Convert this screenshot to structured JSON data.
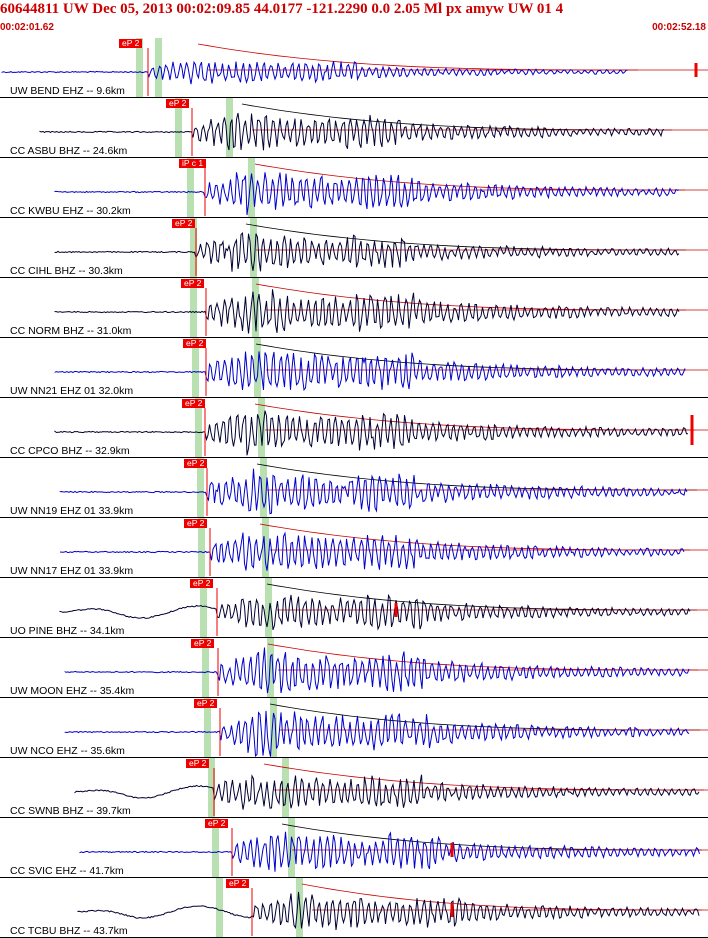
{
  "header": {
    "title": "60644811 UW Dec 05, 2013 00:02:09.85   44.0177 -121.2290  0.0 2.05 Ml px amyw UW 01    4",
    "start_time": "00:02:01.62",
    "end_time": "00:02:52.18"
  },
  "colors": {
    "header_text": "#cc0000",
    "trace_blue": "#0000cc",
    "trace_black": "#000033",
    "coda_line": "#cc0000",
    "pick_marker": "#ee0000",
    "window_band": "#b8e0b0"
  },
  "traces": [
    {
      "label": "UW BEND EHZ -- 9.6km",
      "pick": "eP 2",
      "color": "blue"
    },
    {
      "label": "CC ASBU BHZ -- 24.6km",
      "pick": "eP 2",
      "color": "black"
    },
    {
      "label": "CC KWBU EHZ -- 30.2km",
      "pick": "iP c 1",
      "color": "blue"
    },
    {
      "label": "CC CIHL BHZ -- 30.3km",
      "pick": "eP 2",
      "color": "black"
    },
    {
      "label": "CC NORM BHZ -- 31.0km",
      "pick": "eP 2",
      "color": "black"
    },
    {
      "label": "UW NN21 EHZ 01 32.0km",
      "pick": "eP 2",
      "color": "blue"
    },
    {
      "label": "CC CPCO BHZ -- 32.9km",
      "pick": "eP 2",
      "color": "black"
    },
    {
      "label": "UW NN19 EHZ 01 33.9km",
      "pick": "eP 2",
      "color": "blue"
    },
    {
      "label": "UW NN17 EHZ 01 33.9km",
      "pick": "eP 2",
      "color": "blue"
    },
    {
      "label": "UO PINE BHZ -- 34.1km",
      "pick": "eP 2",
      "color": "black"
    },
    {
      "label": "UW MOON EHZ -- 35.4km",
      "pick": "eP 2",
      "color": "blue"
    },
    {
      "label": "UW NCO EHZ -- 35.6km",
      "pick": "eP 2",
      "color": "blue"
    },
    {
      "label": "CC SWNB BHZ -- 39.7km",
      "pick": "eP 2",
      "color": "black"
    },
    {
      "label": "CC SVIC EHZ -- 41.7km",
      "pick": "eP 2",
      "color": "blue"
    },
    {
      "label": "CC TCBU BHZ -- 43.7km",
      "pick": "eP 2",
      "color": "black"
    }
  ]
}
